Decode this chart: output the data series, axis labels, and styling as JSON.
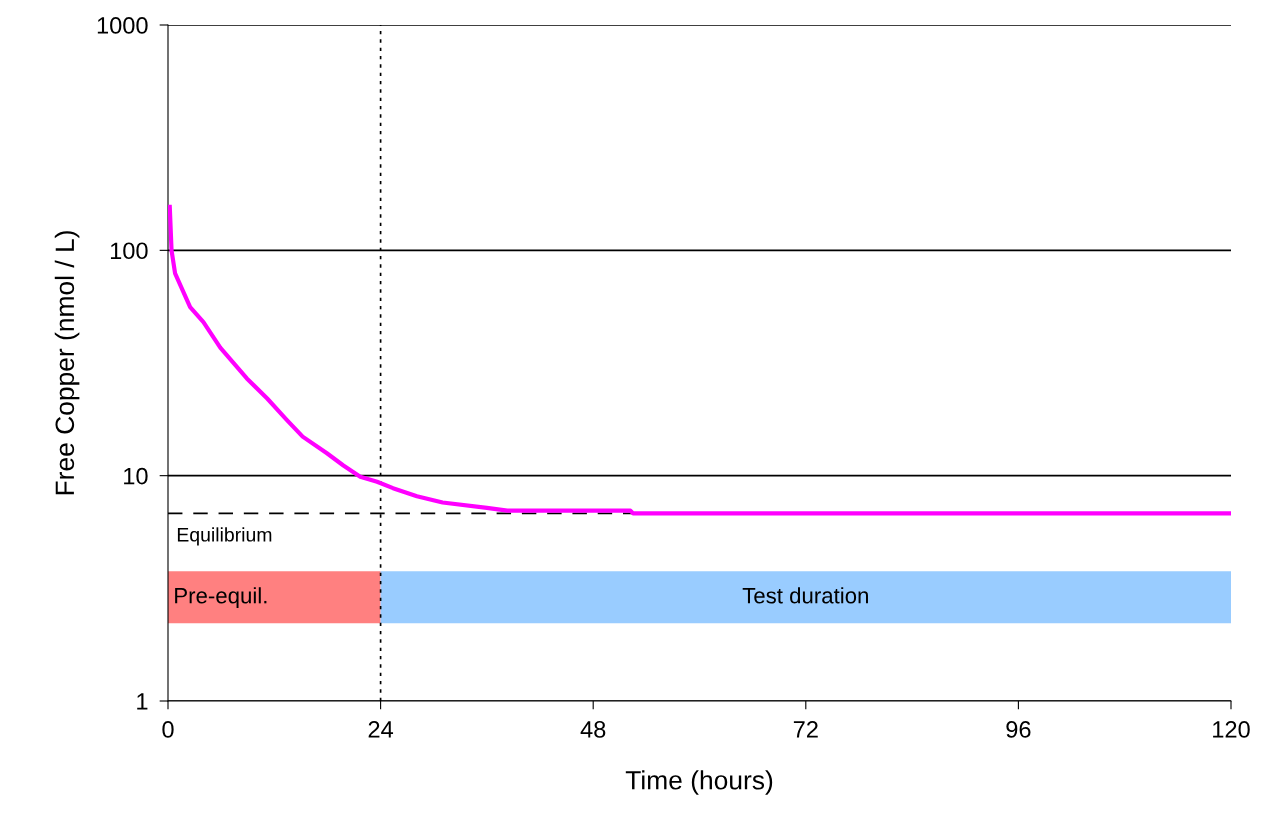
{
  "chart_data": {
    "type": "line",
    "xlabel": "Time (hours)",
    "ylabel": "Free Copper (nmol / L)",
    "x": [
      0.2,
      0.4,
      0.8,
      2.5,
      4,
      5.9,
      8.9,
      11.2,
      13.4,
      15.2,
      17.9,
      19.8,
      21.7,
      23.6,
      25.4,
      28.1,
      31,
      36,
      38.3,
      52.2,
      52.5,
      120
    ],
    "series": [
      {
        "color": "#ff00ff",
        "values": [
          156,
          100,
          79,
          56,
          48,
          37,
          27,
          22,
          17.7,
          14.9,
          12.6,
          11.1,
          9.9,
          9.4,
          8.8,
          8.1,
          7.6,
          7.2,
          7.0,
          7.0,
          6.8,
          6.8
        ]
      }
    ],
    "log": "y",
    "xlim": [
      0,
      120
    ],
    "xticks": [
      0,
      24,
      48,
      72,
      96,
      120
    ],
    "ylim": [
      1,
      1000
    ],
    "yticks": [
      1,
      10,
      100,
      1000
    ],
    "grid": "y",
    "legend": false,
    "line_style": "solid",
    "marker": "none",
    "ref_lines": [
      {
        "axis": "x",
        "value": 24,
        "line_style": "dotted",
        "color": "#000000"
      },
      {
        "axis": "y",
        "value": 6.8,
        "label": "Equilibrium",
        "line_style": "dashed",
        "color": "#000000"
      }
    ],
    "bands": [
      {
        "axis": "x",
        "from": 0,
        "to": 24,
        "label": "Pre-equil.",
        "color": "#ff8080"
      },
      {
        "axis": "x",
        "from": 24,
        "to": 120,
        "label": "Test duration",
        "color": "#99ccff"
      }
    ]
  }
}
